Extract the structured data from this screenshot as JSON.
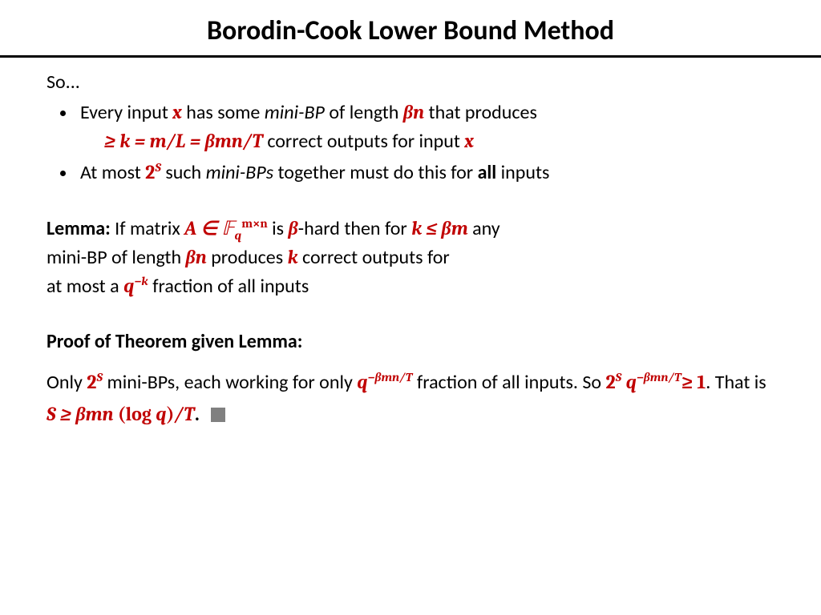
{
  "colors": {
    "math": "#c00000",
    "text": "#000000",
    "qed": "#808080",
    "background": "#ffffff",
    "rule": "#000000"
  },
  "typography": {
    "title_fontsize": 34,
    "body_fontsize": 24,
    "font_family": "Calibri"
  },
  "title": "Borodin-Cook Lower Bound Method",
  "so": "So...",
  "bullet1": {
    "t1": "Every input ",
    "m1": "x",
    "t2": " has some ",
    "i1": "mini-BP",
    "t3": " of length ",
    "m2": "βn",
    "t4": " that produces",
    "line2_m1": "≥ k = m/L = βmn/T",
    "line2_t1": " correct outputs for input ",
    "line2_m2": "x"
  },
  "bullet2": {
    "t1": "At most ",
    "m_base": "2",
    "m_sup": "S",
    "t2": " such ",
    "i1": "mini-BPs",
    "t3": " together must do this for ",
    "b1": "all",
    "t4": " inputs"
  },
  "lemma": {
    "head": "Lemma:",
    "t1": " If matrix ",
    "m1a": "A ∈ ",
    "m1b": "𝔽",
    "m1_sub": "q",
    "m1_sup": "m×n",
    "t2": " is ",
    "m2": "β",
    "t3": "-hard then for ",
    "m3": "k ≤ βm",
    "t4": " any",
    "t5": "mini-BP of length ",
    "m4": "βn",
    "t6": " produces ",
    "m5": "k",
    "t7": "  correct outputs for",
    "t8": "at most a ",
    "m6_base": "q",
    "m6_sup": "−k",
    "t9": " fraction of all inputs"
  },
  "proof": {
    "head": "Proof of Theorem given Lemma:",
    "t1": "Only ",
    "m1_base": "2",
    "m1_sup": "S",
    "t2": " mini-BPs, each working for only ",
    "m2_base": "q",
    "m2_sup": "−βmn/T",
    "t3": " fraction of all inputs.    So ",
    "m3_a": "2",
    "m3_a_sup": "S",
    "m3_sp": " ",
    "m3_b": "q",
    "m3_b_sup": "−βmn/T",
    "m3_c": "≥ 1",
    "t4": ".  That is ",
    "m4": "S ≥ βmn ",
    "m4_log": "(log ",
    "m4_q": "q",
    "m4_paren": ")",
    "m4_end": "/T",
    "period": "."
  }
}
